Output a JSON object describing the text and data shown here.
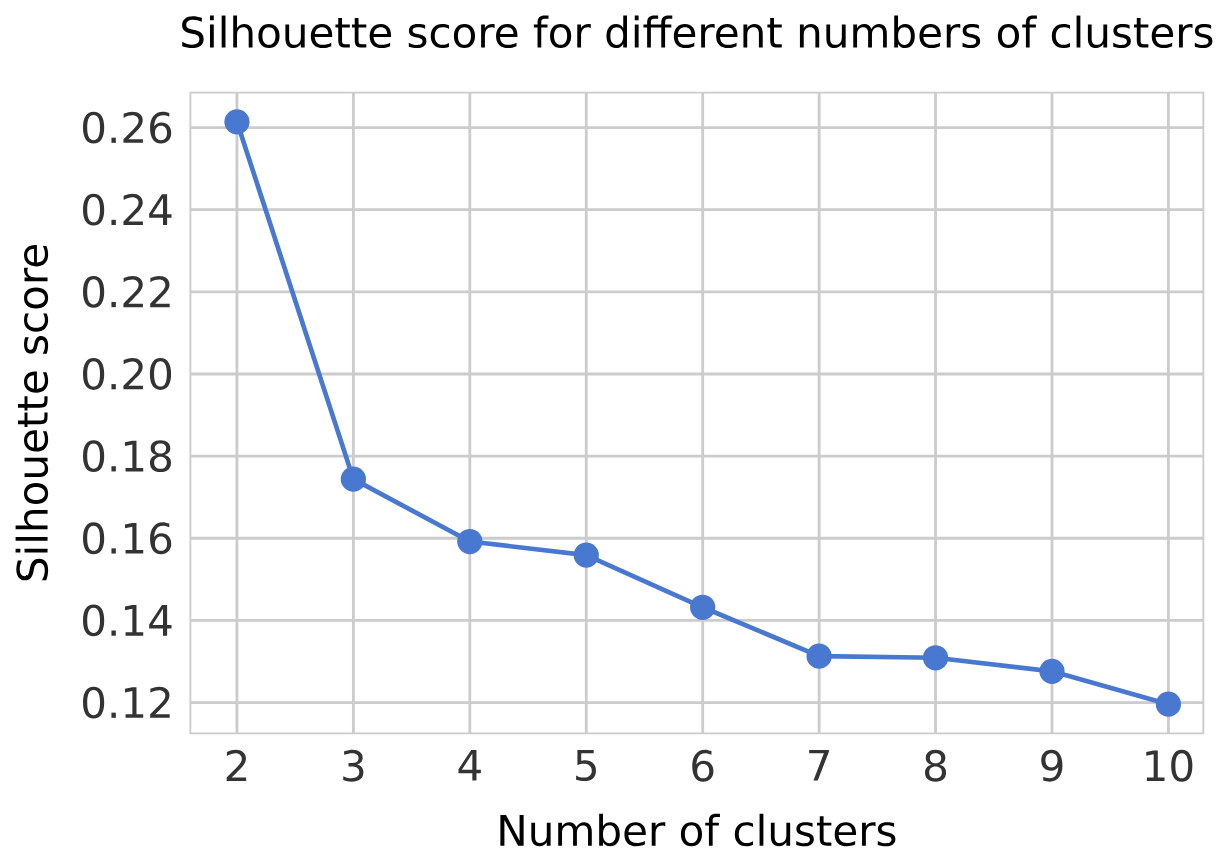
{
  "chart_data": {
    "type": "line",
    "title": "Silhouette score for different numbers of clusters",
    "xlabel": "Number of clusters",
    "ylabel": "Silhouette score",
    "x": [
      2,
      3,
      4,
      5,
      6,
      7,
      8,
      9,
      10
    ],
    "series": [
      {
        "color": "#4878d0",
        "values": [
          0.2614,
          0.1744,
          0.1592,
          0.1559,
          0.1432,
          0.1313,
          0.1309,
          0.1276,
          0.1196
        ]
      }
    ],
    "xlim": [
      1.6,
      10.3
    ],
    "ylim": [
      0.1125,
      0.2685
    ],
    "xticks": [
      2,
      3,
      4,
      5,
      6,
      7,
      8,
      9,
      10
    ],
    "yticks": [
      0.12,
      0.14,
      0.16,
      0.18,
      {
        "value": 0.2,
        "label": "0.20"
      },
      0.22,
      0.24,
      0.26
    ],
    "grid": true,
    "marker": "circle",
    "line_style": "solid"
  }
}
